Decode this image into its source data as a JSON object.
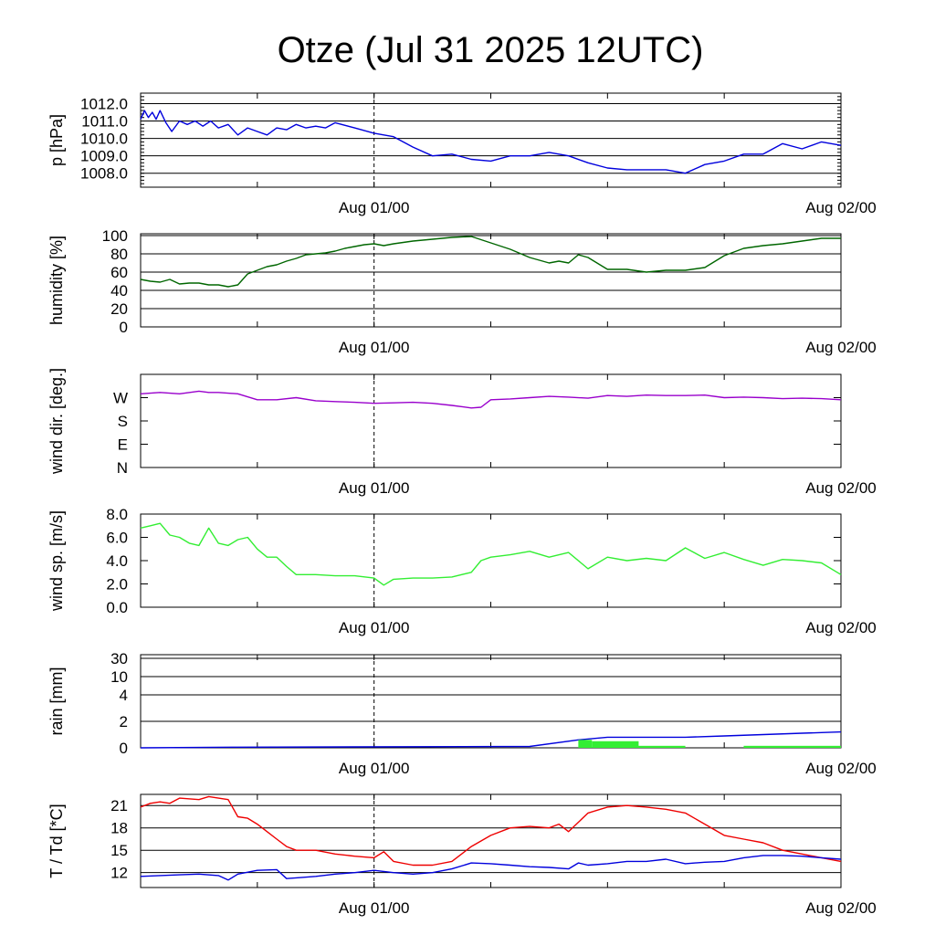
{
  "title": "Otze (Jul 31 2025 12UTC)",
  "chart_data": [
    {
      "type": "line",
      "ylabel": "p [hPa]",
      "ylim": [
        1007.2,
        1012.6
      ],
      "yticks": [
        "1008.0",
        "1009.0",
        "1010.0",
        "1011.0",
        "1012.0"
      ],
      "ytick_values": [
        1008,
        1009,
        1010,
        1011,
        1012
      ],
      "xlim": [
        0,
        36
      ],
      "xtick_labels": [
        "Aug 01/00",
        "Aug 02/00"
      ],
      "xtick_values": [
        12,
        36
      ],
      "grid": true,
      "series": [
        {
          "color": "#0000dd",
          "x": [
            0,
            0.2,
            0.4,
            0.6,
            0.8,
            1.0,
            1.3,
            1.6,
            2.0,
            2.4,
            2.8,
            3.2,
            3.6,
            4.0,
            4.5,
            5.0,
            5.5,
            6.0,
            6.5,
            7.0,
            7.5,
            8.0,
            8.5,
            9.0,
            9.5,
            10.0,
            11.0,
            12.0,
            13.0,
            14.0,
            15.0,
            16.0,
            17.0,
            18.0,
            19.0,
            20.0,
            21.0,
            22.0,
            23.0,
            24.0,
            25.0,
            26.0,
            27.0,
            28.0,
            29.0,
            30.0,
            31.0,
            32.0,
            33.0,
            34.0,
            35.0,
            36.0
          ],
          "y": [
            1011.1,
            1011.6,
            1011.2,
            1011.5,
            1011.1,
            1011.6,
            1010.9,
            1010.4,
            1011.0,
            1010.8,
            1011.0,
            1010.7,
            1011.0,
            1010.6,
            1010.8,
            1010.2,
            1010.6,
            1010.4,
            1010.2,
            1010.6,
            1010.5,
            1010.8,
            1010.6,
            1010.7,
            1010.6,
            1010.9,
            1010.6,
            1010.3,
            1010.1,
            1009.5,
            1009.0,
            1009.1,
            1008.8,
            1008.7,
            1009.0,
            1009.0,
            1009.2,
            1009.0,
            1008.6,
            1008.3,
            1008.2,
            1008.2,
            1008.2,
            1008.0,
            1008.5,
            1008.7,
            1009.1,
            1009.1,
            1009.7,
            1009.4,
            1009.8,
            1009.6
          ]
        }
      ]
    },
    {
      "type": "line",
      "ylabel": "humidity [%]",
      "ylim": [
        0,
        102
      ],
      "yticks": [
        "0",
        "20",
        "40",
        "60",
        "80",
        "100"
      ],
      "ytick_values": [
        0,
        20,
        40,
        60,
        80,
        100
      ],
      "xlim": [
        0,
        36
      ],
      "xtick_labels": [
        "Aug 01/00",
        "Aug 02/00"
      ],
      "xtick_values": [
        12,
        36
      ],
      "grid": true,
      "series": [
        {
          "color": "#006600",
          "x": [
            0,
            0.5,
            1.0,
            1.5,
            2.0,
            2.5,
            3.0,
            3.5,
            4.0,
            4.5,
            5.0,
            5.5,
            6.0,
            6.5,
            7.0,
            7.5,
            8.0,
            8.5,
            9.0,
            9.5,
            10.0,
            10.5,
            11.0,
            11.5,
            12.0,
            12.5,
            13.0,
            14.0,
            15.0,
            16.0,
            17.0,
            18.0,
            19.0,
            20.0,
            21.0,
            21.5,
            22.0,
            22.5,
            23.0,
            24.0,
            25.0,
            26.0,
            27.0,
            28.0,
            29.0,
            30.0,
            31.0,
            32.0,
            33.0,
            34.0,
            35.0,
            36.0
          ],
          "y": [
            52,
            50,
            49,
            52,
            47,
            48,
            48,
            46,
            46,
            44,
            46,
            58,
            62,
            66,
            68,
            72,
            75,
            79,
            80,
            81,
            83,
            86,
            88,
            90,
            91,
            89,
            91,
            94,
            96,
            98,
            99,
            92,
            85,
            76,
            70,
            72,
            70,
            79,
            76,
            63,
            63,
            60,
            62,
            62,
            65,
            78,
            86,
            89,
            91,
            94,
            97,
            97
          ]
        }
      ]
    },
    {
      "type": "line",
      "ylabel": "wind dir. [deg.]",
      "ylim": [
        0,
        360
      ],
      "yticks": [
        "N",
        "E",
        "S",
        "W"
      ],
      "ytick_values": [
        0,
        90,
        180,
        270
      ],
      "xlim": [
        0,
        36
      ],
      "xtick_labels": [
        "Aug 01/00",
        "Aug 02/00"
      ],
      "xtick_values": [
        12,
        36
      ],
      "grid": false,
      "series": [
        {
          "color": "#9900cc",
          "x": [
            0,
            1.0,
            2.0,
            3.0,
            3.5,
            4.0,
            5.0,
            6.0,
            7.0,
            8.0,
            9.0,
            10.0,
            11.0,
            12.0,
            13.0,
            14.0,
            15.0,
            16.0,
            17.0,
            17.5,
            18.0,
            19.0,
            20.0,
            21.0,
            22.0,
            23.0,
            24.0,
            25.0,
            26.0,
            27.0,
            28.0,
            29.0,
            30.0,
            31.0,
            32.0,
            33.0,
            34.0,
            35.0,
            36.0
          ],
          "y": [
            285,
            290,
            285,
            295,
            290,
            290,
            285,
            262,
            262,
            270,
            258,
            255,
            252,
            248,
            250,
            252,
            248,
            240,
            230,
            233,
            262,
            265,
            270,
            275,
            272,
            268,
            278,
            275,
            280,
            278,
            278,
            280,
            270,
            272,
            270,
            266,
            268,
            266,
            262
          ]
        }
      ]
    },
    {
      "type": "line",
      "ylabel": "wind sp. [m/s]",
      "ylim": [
        0,
        8.0
      ],
      "yticks": [
        "0.0",
        "2.0",
        "4.0",
        "6.0",
        "8.0"
      ],
      "ytick_values": [
        0,
        2,
        4,
        6,
        8
      ],
      "xlim": [
        0,
        36
      ],
      "xtick_labels": [
        "Aug 01/00",
        "Aug 02/00"
      ],
      "xtick_values": [
        12,
        36
      ],
      "grid": false,
      "series": [
        {
          "color": "#33ee33",
          "x": [
            0,
            0.5,
            1.0,
            1.5,
            2.0,
            2.5,
            3.0,
            3.5,
            4.0,
            4.5,
            5.0,
            5.5,
            6.0,
            6.5,
            7.0,
            7.5,
            8.0,
            9.0,
            10.0,
            11.0,
            12.0,
            12.5,
            13.0,
            14.0,
            15.0,
            16.0,
            17.0,
            17.5,
            18.0,
            19.0,
            20.0,
            21.0,
            22.0,
            23.0,
            24.0,
            25.0,
            26.0,
            27.0,
            28.0,
            29.0,
            30.0,
            31.0,
            32.0,
            33.0,
            34.0,
            35.0,
            36.0
          ],
          "y": [
            6.8,
            7.0,
            7.2,
            6.2,
            6.0,
            5.5,
            5.3,
            6.8,
            5.5,
            5.3,
            5.8,
            6.0,
            5.0,
            4.3,
            4.3,
            3.5,
            2.8,
            2.8,
            2.7,
            2.7,
            2.5,
            1.9,
            2.4,
            2.5,
            2.5,
            2.6,
            3.0,
            4.0,
            4.3,
            4.5,
            4.8,
            4.3,
            4.7,
            3.3,
            4.3,
            4.0,
            4.2,
            4.0,
            5.1,
            4.2,
            4.7,
            4.1,
            3.6,
            4.1,
            4.0,
            3.8,
            2.8
          ]
        }
      ]
    },
    {
      "type": "area",
      "ylabel": "rain [mm]",
      "ylim": [
        0,
        30
      ],
      "yticks": [
        "0",
        "2",
        "4",
        "10",
        "30"
      ],
      "ytick_values": [
        0,
        2,
        4,
        10,
        30
      ],
      "xlim": [
        0,
        36
      ],
      "xtick_labels": [
        "Aug 01/00",
        "Aug 02/00"
      ],
      "xtick_values": [
        12,
        36
      ],
      "grid": true,
      "series": [
        {
          "color": "#0000dd",
          "x": [
            0,
            5,
            20,
            22.5,
            24,
            28,
            30,
            34,
            36
          ],
          "y": [
            0,
            0.05,
            0.1,
            0.6,
            0.8,
            0.8,
            0.9,
            1.1,
            1.2
          ]
        },
        {
          "color": "#33ee33",
          "bars_x0": [
            22.5,
            23.2,
            24.0,
            31.0
          ],
          "bars_x1": [
            23.2,
            25.6,
            28.0,
            36.0
          ],
          "bars_y": [
            0.6,
            0.5,
            0.15,
            0.15
          ]
        }
      ]
    },
    {
      "type": "line",
      "ylabel": "T / Td [*C]",
      "ylim": [
        10,
        22.5
      ],
      "yticks": [
        "12",
        "15",
        "18",
        "21"
      ],
      "ytick_values": [
        12,
        15,
        18,
        21
      ],
      "xlim": [
        0,
        36
      ],
      "xtick_labels": [
        "Aug 01/00",
        "Aug 02/00"
      ],
      "xtick_values": [
        12,
        36
      ],
      "grid": true,
      "series": [
        {
          "color": "#ee0000",
          "x": [
            0,
            0.5,
            1.0,
            1.5,
            2.0,
            3.0,
            3.5,
            4.0,
            4.5,
            5.0,
            5.5,
            6.0,
            6.5,
            7.0,
            7.5,
            8.0,
            9.0,
            10.0,
            11.0,
            12.0,
            12.5,
            13.0,
            14.0,
            15.0,
            16.0,
            17.0,
            18.0,
            19.0,
            20.0,
            21.0,
            21.5,
            22.0,
            23.0,
            24.0,
            25.0,
            26.0,
            27.0,
            28.0,
            29.0,
            30.0,
            31.0,
            32.0,
            33.0,
            34.0,
            35.0,
            36.0
          ],
          "y": [
            20.8,
            21.3,
            21.5,
            21.3,
            22.0,
            21.8,
            22.2,
            22.0,
            21.8,
            19.5,
            19.3,
            18.5,
            17.5,
            16.5,
            15.5,
            15.0,
            15.0,
            14.5,
            14.2,
            14.0,
            14.8,
            13.5,
            13.0,
            13.0,
            13.5,
            15.5,
            17.0,
            18.0,
            18.2,
            18.0,
            18.5,
            17.5,
            20.0,
            20.8,
            21.0,
            20.8,
            20.5,
            20.0,
            18.5,
            17.0,
            16.5,
            16.0,
            15.0,
            14.5,
            14.0,
            13.5
          ]
        },
        {
          "color": "#0000dd",
          "x": [
            0,
            1.0,
            2.0,
            3.0,
            4.0,
            4.5,
            5.0,
            6.0,
            7.0,
            7.5,
            8.0,
            9.0,
            10.0,
            11.0,
            12.0,
            13.0,
            14.0,
            15.0,
            16.0,
            17.0,
            18.0,
            19.0,
            20.0,
            21.0,
            22.0,
            22.5,
            23.0,
            24.0,
            25.0,
            26.0,
            27.0,
            28.0,
            29.0,
            30.0,
            31.0,
            32.0,
            33.0,
            34.0,
            35.0,
            36.0
          ],
          "y": [
            11.5,
            11.6,
            11.7,
            11.8,
            11.6,
            11.0,
            11.8,
            12.3,
            12.4,
            11.2,
            11.3,
            11.5,
            11.8,
            12.0,
            12.3,
            12.0,
            11.8,
            12.0,
            12.5,
            13.3,
            13.2,
            13.0,
            12.8,
            12.7,
            12.5,
            13.3,
            13.0,
            13.2,
            13.5,
            13.5,
            13.8,
            13.2,
            13.4,
            13.5,
            14.0,
            14.3,
            14.3,
            14.2,
            14.0,
            13.8
          ]
        }
      ]
    }
  ]
}
